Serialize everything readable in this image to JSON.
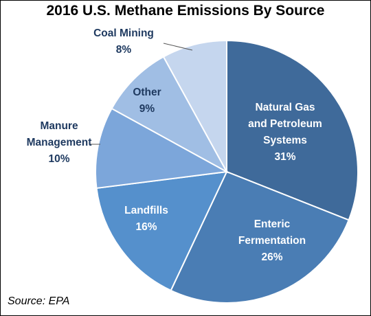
{
  "chart_data": {
    "type": "pie",
    "title": "2016 U.S. Methane Emissions By Source",
    "slices": [
      {
        "label": [
          "Natural Gas",
          "and Petroleum",
          "Systems"
        ],
        "value_label": "31%",
        "value": 31,
        "color": "#3F6A9A",
        "text_color": "#ffffff"
      },
      {
        "label": [
          "Enteric",
          "Fermentation"
        ],
        "value_label": "26%",
        "value": 26,
        "color": "#4A7DB4",
        "text_color": "#ffffff"
      },
      {
        "label": [
          "Landfills"
        ],
        "value_label": "16%",
        "value": 16,
        "color": "#5590CC",
        "text_color": "#ffffff"
      },
      {
        "label": [
          "Manure",
          "Management"
        ],
        "value_label": "10%",
        "value": 10,
        "color": "#7CA6DA",
        "text_color": "#1F3A60"
      },
      {
        "label": [
          "Other"
        ],
        "value_label": "9%",
        "value": 9,
        "color": "#A0BEE4",
        "text_color": "#1F3A60"
      },
      {
        "label": [
          "Coal Mining"
        ],
        "value_label": "8%",
        "value": 8,
        "color": "#C5D6EE",
        "text_color": "#1F3A60"
      }
    ],
    "source": "Source: EPA"
  }
}
